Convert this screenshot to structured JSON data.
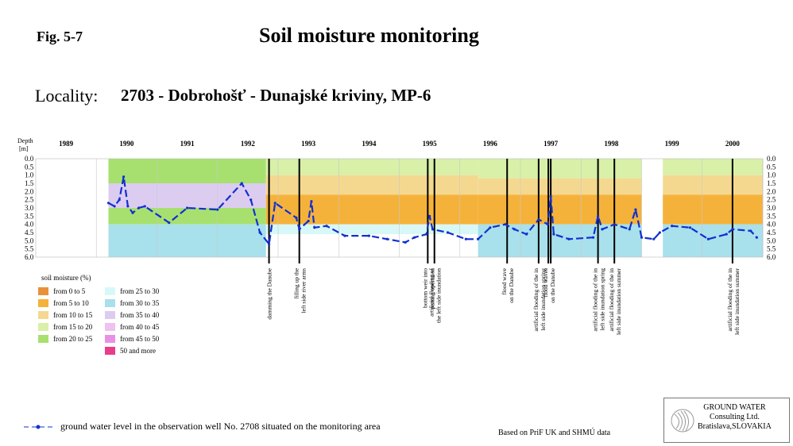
{
  "header": {
    "fig": "Fig. 5-7",
    "title": "Soil moisture monitoring",
    "locality_label": "Locality:",
    "locality_value": "2703 - Dobrohošť - Dunajské kriviny, MP-6"
  },
  "legend": {
    "title": "soil moisture (%)",
    "items": [
      {
        "label": "from 0 to 5",
        "color": "#e8913a"
      },
      {
        "label": "from 5 to 10",
        "color": "#f5b23a"
      },
      {
        "label": "from 10 to 15",
        "color": "#f5d890"
      },
      {
        "label": "from 15 to 20",
        "color": "#d8f0a8"
      },
      {
        "label": "from 20 to 25",
        "color": "#a8e070"
      },
      {
        "label": "from 25 to 30",
        "color": "#d8f8f8"
      },
      {
        "label": "from 30 to 35",
        "color": "#a8e0ec"
      },
      {
        "label": "from 35 to 40",
        "color": "#dcccf0"
      },
      {
        "label": "from 40 to 45",
        "color": "#f0c0f0"
      },
      {
        "label": "from 45 to 50",
        "color": "#e890e8"
      },
      {
        "label": "50 and more",
        "color": "#e83c8c"
      }
    ]
  },
  "groundwater_legend": "ground water level in the observation well No. 2708 situated on the monitoring area",
  "source": "Based on PriF UK and SHMÚ data",
  "logo": {
    "line1": "GROUND WATER",
    "line2": "Consulting Ltd.",
    "line3": "Bratislava,SLOVAKIA"
  },
  "chart_data": {
    "type": "heatmap",
    "ylabel": "Depth [m]",
    "y_ticks": [
      "0.0",
      "0.5",
      "1.0",
      "1.5",
      "2.0",
      "2.5",
      "3.0",
      "3.5",
      "4.0",
      "4.5",
      "5.0",
      "5.5",
      "6.0"
    ],
    "ylim": [
      0,
      6
    ],
    "xlim": [
      1988.5,
      2000.5
    ],
    "years": [
      "1989",
      "1990",
      "1991",
      "1992",
      "1993",
      "1994",
      "1995",
      "1996",
      "1997",
      "1998",
      "1999",
      "2000"
    ],
    "events": [
      {
        "t": 1992.35,
        "label": "damming the Danube"
      },
      {
        "t": 1992.85,
        "label": "filling up the left side river arms"
      },
      {
        "t": 1994.97,
        "label": "bottom weir putting into operation"
      },
      {
        "t": 1995.08,
        "label": "artificial flooding of the left side inundation"
      },
      {
        "t": 1996.28,
        "label": "flood wave on the Danube"
      },
      {
        "t": 1996.8,
        "label": "artificial flooding of the left side inundation in spring"
      },
      {
        "t": 1996.96,
        "label": "flood waves on the Danube"
      },
      {
        "t": 1997.0,
        "label": ""
      },
      {
        "t": 1997.78,
        "label": "artificial flooding of the left side inundation in spring"
      },
      {
        "t": 1998.05,
        "label": "artificial flooding of the left side inundation in summer"
      },
      {
        "t": 2000.0,
        "label": "artificial flooding of the left side inundation in summer"
      }
    ],
    "moisture_layers": [
      {
        "from": 1989.7,
        "to": 1992.3,
        "depth": [
          0.0,
          1.5
        ],
        "class": "from 20 to 25"
      },
      {
        "from": 1989.7,
        "to": 1992.3,
        "depth": [
          1.5,
          3.0
        ],
        "class": "from 35 to 40"
      },
      {
        "from": 1989.7,
        "to": 1992.3,
        "depth": [
          3.0,
          4.0
        ],
        "class": "from 20 to 25"
      },
      {
        "from": 1989.7,
        "to": 1992.3,
        "depth": [
          4.0,
          6.0
        ],
        "class": "from 30 to 35"
      },
      {
        "from": 1992.3,
        "to": 1995.8,
        "depth": [
          0.0,
          1.0
        ],
        "class": "from 15 to 20"
      },
      {
        "from": 1992.3,
        "to": 1995.8,
        "depth": [
          1.0,
          2.2
        ],
        "class": "from 10 to 15"
      },
      {
        "from": 1992.3,
        "to": 1995.8,
        "depth": [
          2.2,
          4.0
        ],
        "class": "from 5 to 10"
      },
      {
        "from": 1992.3,
        "to": 1995.8,
        "depth": [
          4.0,
          4.6
        ],
        "class": "from 25 to 30"
      },
      {
        "from": 1995.8,
        "to": 1998.5,
        "depth": [
          0.0,
          1.2
        ],
        "class": "from 15 to 20"
      },
      {
        "from": 1995.8,
        "to": 1998.5,
        "depth": [
          1.2,
          2.2
        ],
        "class": "from 10 to 15"
      },
      {
        "from": 1995.8,
        "to": 1998.5,
        "depth": [
          2.2,
          4.0
        ],
        "class": "from 5 to 10"
      },
      {
        "from": 1995.8,
        "to": 1998.5,
        "depth": [
          4.0,
          6.0
        ],
        "class": "from 30 to 35"
      },
      {
        "from": 1998.85,
        "to": 2000.5,
        "depth": [
          0.0,
          1.0
        ],
        "class": "from 15 to 20"
      },
      {
        "from": 1998.85,
        "to": 2000.5,
        "depth": [
          1.0,
          2.2
        ],
        "class": "from 10 to 15"
      },
      {
        "from": 1998.85,
        "to": 2000.5,
        "depth": [
          2.2,
          4.0
        ],
        "class": "from 5 to 10"
      },
      {
        "from": 1998.85,
        "to": 2000.5,
        "depth": [
          4.0,
          6.0
        ],
        "class": "from 30 to 35"
      }
    ],
    "groundwater_level": [
      [
        1989.7,
        2.7
      ],
      [
        1989.8,
        2.9
      ],
      [
        1989.88,
        2.5
      ],
      [
        1989.95,
        1.1
      ],
      [
        1990.02,
        2.9
      ],
      [
        1990.1,
        3.3
      ],
      [
        1990.2,
        3.0
      ],
      [
        1990.3,
        2.9
      ],
      [
        1990.7,
        3.9
      ],
      [
        1991.0,
        3.0
      ],
      [
        1991.5,
        3.1
      ],
      [
        1991.9,
        1.5
      ],
      [
        1992.05,
        2.5
      ],
      [
        1992.2,
        4.5
      ],
      [
        1992.35,
        5.2
      ],
      [
        1992.45,
        2.7
      ],
      [
        1992.8,
        3.6
      ],
      [
        1992.85,
        4.3
      ],
      [
        1993.0,
        3.8
      ],
      [
        1993.05,
        2.6
      ],
      [
        1993.1,
        4.2
      ],
      [
        1993.3,
        4.1
      ],
      [
        1993.6,
        4.7
      ],
      [
        1994.0,
        4.7
      ],
      [
        1994.3,
        4.9
      ],
      [
        1994.6,
        5.1
      ],
      [
        1994.75,
        4.8
      ],
      [
        1994.95,
        4.6
      ],
      [
        1995.0,
        3.5
      ],
      [
        1995.05,
        4.3
      ],
      [
        1995.3,
        4.5
      ],
      [
        1995.6,
        4.9
      ],
      [
        1995.8,
        4.9
      ],
      [
        1996.0,
        4.2
      ],
      [
        1996.25,
        4.0
      ],
      [
        1996.4,
        4.3
      ],
      [
        1996.6,
        4.6
      ],
      [
        1996.8,
        3.7
      ],
      [
        1996.95,
        4.0
      ],
      [
        1997.0,
        2.3
      ],
      [
        1997.05,
        4.6
      ],
      [
        1997.3,
        4.9
      ],
      [
        1997.7,
        4.8
      ],
      [
        1997.78,
        3.5
      ],
      [
        1997.85,
        4.3
      ],
      [
        1998.05,
        4.0
      ],
      [
        1998.3,
        4.3
      ],
      [
        1998.4,
        3.1
      ],
      [
        1998.5,
        4.8
      ],
      [
        1998.7,
        4.9
      ],
      [
        1998.8,
        4.5
      ],
      [
        1999.0,
        4.1
      ],
      [
        1999.3,
        4.2
      ],
      [
        1999.6,
        4.9
      ],
      [
        1999.9,
        4.6
      ],
      [
        2000.0,
        4.3
      ],
      [
        2000.3,
        4.4
      ],
      [
        2000.4,
        4.8
      ]
    ]
  }
}
